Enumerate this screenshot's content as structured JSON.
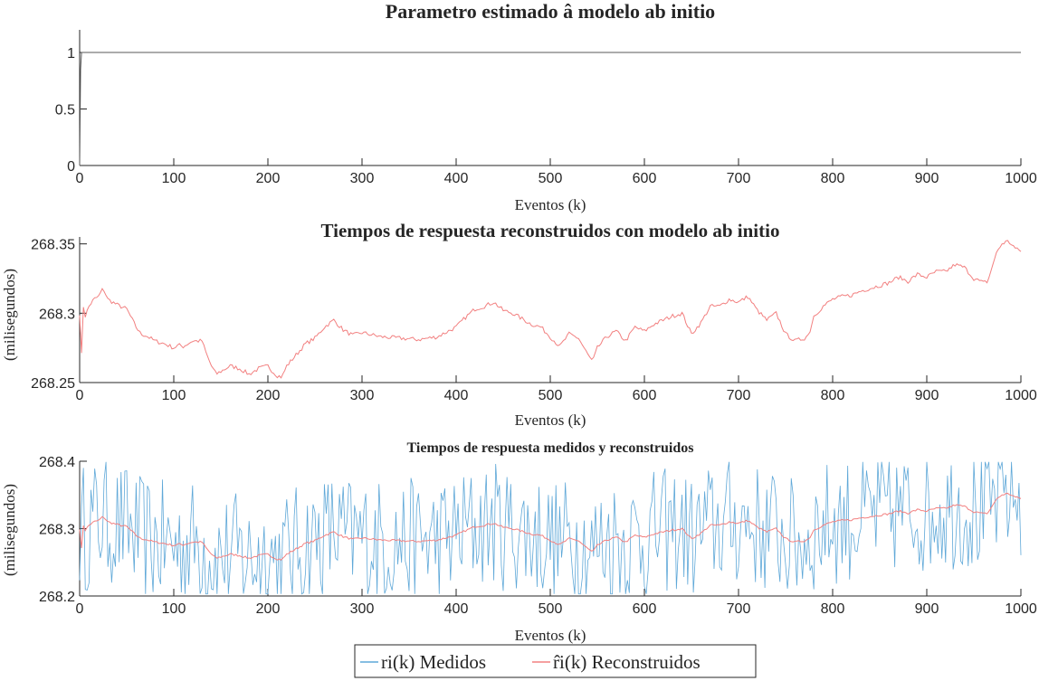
{
  "chart_data": [
    {
      "type": "line",
      "title": "Parametro estimado â modelo ab initio",
      "xlabel": "Eventos (k)",
      "ylabel": "",
      "xlim": [
        0,
        1000
      ],
      "ylim": [
        0,
        1.2
      ],
      "xticks": [
        "0",
        "100",
        "200",
        "300",
        "400",
        "500",
        "600",
        "700",
        "800",
        "900",
        "1000"
      ],
      "yticks": [
        "0",
        "0.5",
        "1"
      ],
      "grid": false,
      "series": [
        {
          "color": "#5a5a5a",
          "x": [
            0,
            1,
            2,
            3,
            1000
          ],
          "y": [
            0,
            0.85,
            1.0,
            1.0,
            1.0
          ]
        }
      ]
    },
    {
      "type": "line",
      "title": "Tiempos de respuesta reconstruidos con modelo ab initio",
      "xlabel": "Eventos (k)",
      "ylabel": "(milisegundos)",
      "xlim": [
        0,
        1000
      ],
      "ylim": [
        268.25,
        268.355
      ],
      "xticks": [
        "0",
        "100",
        "200",
        "300",
        "400",
        "500",
        "600",
        "700",
        "800",
        "900",
        "1000"
      ],
      "yticks": [
        "268.25",
        "268.3",
        "268.35"
      ],
      "grid": false,
      "series": [
        {
          "color": "#f28080",
          "x": [
            0,
            2,
            4,
            6,
            10,
            15,
            20,
            25,
            30,
            40,
            50,
            60,
            65,
            70,
            80,
            90,
            100,
            105,
            110,
            120,
            130,
            135,
            140,
            145,
            150,
            160,
            170,
            180,
            190,
            200,
            205,
            210,
            215,
            220,
            230,
            240,
            250,
            260,
            270,
            280,
            290,
            300,
            320,
            340,
            360,
            380,
            400,
            410,
            420,
            430,
            440,
            450,
            460,
            470,
            480,
            490,
            500,
            510,
            520,
            530,
            540,
            545,
            550,
            560,
            570,
            580,
            590,
            600,
            610,
            620,
            630,
            640,
            650,
            660,
            670,
            680,
            690,
            700,
            710,
            720,
            730,
            740,
            750,
            760,
            770,
            775,
            780,
            790,
            800,
            810,
            820,
            830,
            840,
            850,
            860,
            870,
            880,
            890,
            900,
            910,
            920,
            930,
            940,
            950,
            960,
            965,
            970,
            975,
            980,
            985,
            990,
            995,
            1000
          ],
          "y": [
            268.3,
            268.27,
            268.305,
            268.298,
            268.305,
            268.31,
            268.312,
            268.318,
            268.31,
            268.306,
            268.303,
            268.29,
            268.285,
            268.284,
            268.28,
            268.278,
            268.275,
            268.277,
            268.276,
            268.28,
            268.28,
            268.27,
            268.262,
            268.256,
            268.258,
            268.262,
            268.26,
            268.256,
            268.26,
            268.262,
            268.258,
            268.255,
            268.254,
            268.262,
            268.27,
            268.278,
            268.282,
            268.29,
            268.295,
            268.288,
            268.284,
            268.286,
            268.283,
            268.282,
            268.281,
            268.283,
            268.29,
            268.297,
            268.303,
            268.305,
            268.308,
            268.302,
            268.3,
            268.296,
            268.292,
            268.29,
            268.283,
            268.276,
            268.285,
            268.282,
            268.27,
            268.265,
            268.275,
            268.283,
            268.287,
            268.28,
            268.29,
            268.287,
            268.292,
            268.295,
            268.298,
            268.3,
            268.285,
            268.293,
            268.305,
            268.305,
            268.31,
            268.308,
            268.312,
            268.302,
            268.295,
            268.3,
            268.285,
            268.28,
            268.282,
            268.285,
            268.298,
            268.305,
            268.31,
            268.312,
            268.313,
            268.316,
            268.318,
            268.32,
            268.322,
            268.326,
            268.323,
            268.328,
            268.326,
            268.33,
            268.33,
            268.335,
            268.333,
            268.325,
            268.322,
            268.323,
            268.335,
            268.345,
            268.35,
            268.352,
            268.35,
            268.346,
            268.345
          ]
        }
      ]
    },
    {
      "type": "line",
      "title": "Tiempos de respuesta medidos y reconstruidos",
      "xlabel": "Eventos (k)",
      "ylabel": "(milisegundos)",
      "xlim": [
        0,
        1000
      ],
      "ylim": [
        268.2,
        268.4
      ],
      "xticks": [
        "0",
        "100",
        "200",
        "300",
        "400",
        "500",
        "600",
        "700",
        "800",
        "900",
        "1000"
      ],
      "yticks": [
        "268.2",
        "268.3",
        "268.4"
      ],
      "grid": false,
      "legend_position": "bottom",
      "series": [
        {
          "name": "ri(k) Medidos",
          "color": "#5fa8d8",
          "generated": "noisy measurements around the reconstruction, range 268.2 to 268.4, sampled every 2 events"
        },
        {
          "name": "r̂i(k) Reconstruidos",
          "color": "#f28080",
          "same_as": "panel 2 series"
        }
      ]
    }
  ],
  "legend": {
    "entries": [
      {
        "label": "ri(k) Medidos",
        "color": "#5fa8d8"
      },
      {
        "label": "r̂i(k) Reconstruidos",
        "color": "#f28080"
      }
    ]
  }
}
